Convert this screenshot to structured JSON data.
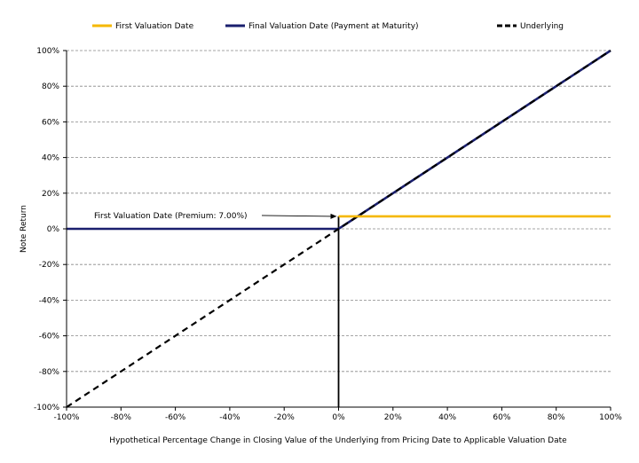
{
  "chart_data": {
    "type": "line",
    "xlabel": "Hypothetical Percentage Change in Closing Value of the Underlying from Pricing Date to Applicable Valuation Date",
    "ylabel": "Note Return",
    "xlim": [
      -100,
      100
    ],
    "ylim": [
      -100,
      100
    ],
    "x_ticks": [
      -100,
      -80,
      -60,
      -40,
      -20,
      0,
      20,
      40,
      60,
      80,
      100
    ],
    "y_ticks": [
      -100,
      -80,
      -60,
      -40,
      -20,
      0,
      20,
      40,
      60,
      80,
      100
    ],
    "x_tick_labels": [
      "-100%",
      "-80%",
      "-60%",
      "-40%",
      "-20%",
      "0%",
      "20%",
      "40%",
      "60%",
      "80%",
      "100%"
    ],
    "y_tick_labels": [
      "-100%",
      "-80%",
      "-60%",
      "-40%",
      "-20%",
      "0%",
      "20%",
      "40%",
      "60%",
      "80%",
      "100%"
    ],
    "grid": "horizontal dashed",
    "legend_position": "top",
    "series": [
      {
        "name": "First Valuation Date",
        "color": "#f5b800",
        "style": "solid",
        "points": [
          [
            0,
            7
          ],
          [
            100,
            7
          ]
        ]
      },
      {
        "name": "Final Valuation Date (Payment at Maturity)",
        "color": "#1a1f6e",
        "style": "solid",
        "points": [
          [
            -100,
            0
          ],
          [
            0,
            0
          ],
          [
            100,
            100
          ]
        ]
      },
      {
        "name": "Underlying",
        "color": "#000000",
        "style": "dashed",
        "points": [
          [
            -100,
            -100
          ],
          [
            100,
            100
          ]
        ]
      }
    ],
    "annotations": [
      {
        "text": "First Valuation Date (Premium: 7.00%)",
        "target": [
          0,
          7
        ]
      }
    ],
    "reference_lines": [
      {
        "orientation": "vertical",
        "x": 0,
        "y_range": [
          -100,
          7
        ],
        "color": "#000000"
      }
    ]
  }
}
